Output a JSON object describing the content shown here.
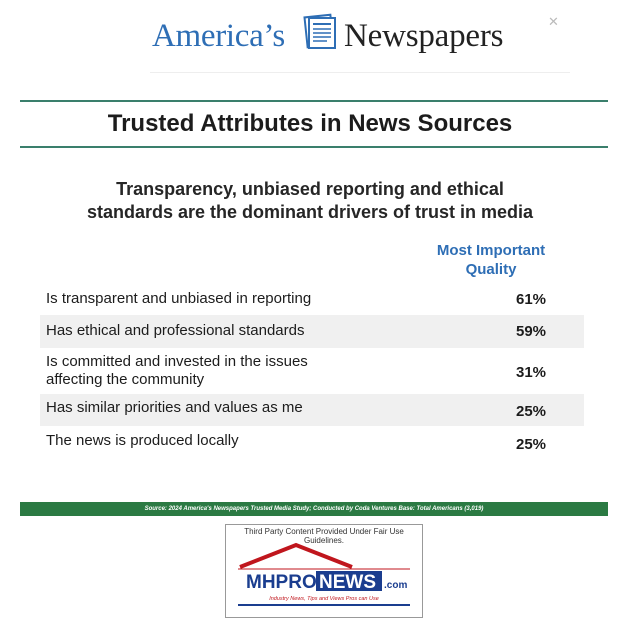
{
  "masthead": {
    "brand_left": "America’s",
    "brand_right": "Newspapers",
    "close_glyph": "✕",
    "icon": "newspaper-icon",
    "brand_color": "#2e6eb5"
  },
  "chart_data": {
    "type": "table",
    "title": "Trusted Attributes in News Sources",
    "subtitle_line1": "Transparency, unbiased reporting and ethical",
    "subtitle_line2": "standards are the dominant drivers of trust in media",
    "column_header_line1": "Most Important",
    "column_header_line2": "Quality",
    "rows": [
      {
        "label": "Is transparent and unbiased in reporting",
        "value": "61%"
      },
      {
        "label": "Has ethical and professional standards",
        "value": "59%"
      },
      {
        "label_line1": "Is committed and invested in the issues",
        "label_line2": "affecting the community",
        "value": "31%"
      },
      {
        "label": "Has similar priorities and values as me",
        "value": "25%"
      },
      {
        "label": "The news is produced locally",
        "value": "25%"
      }
    ],
    "values": [
      61,
      59,
      31,
      25,
      25
    ],
    "unit": "%"
  },
  "source": {
    "text": "Source: 2024 America's Newspapers Trusted Media Study; Conducted by Coda Ventures    Base: Total Americans (3,019)"
  },
  "badge": {
    "caption": "Third Party Content Provided Under Fair Use Guidelines.",
    "logo_text_mhpro": "MHPRO",
    "logo_text_news": "NEWS",
    "logo_text_com": ".com",
    "tagline": "Industry News, Tips and Views Pros can Use"
  },
  "colors": {
    "rule_green": "#3a7f6c",
    "source_green": "#2b7a43",
    "header_blue": "#2e6eb5",
    "row_shade": "#f0f0f0"
  }
}
